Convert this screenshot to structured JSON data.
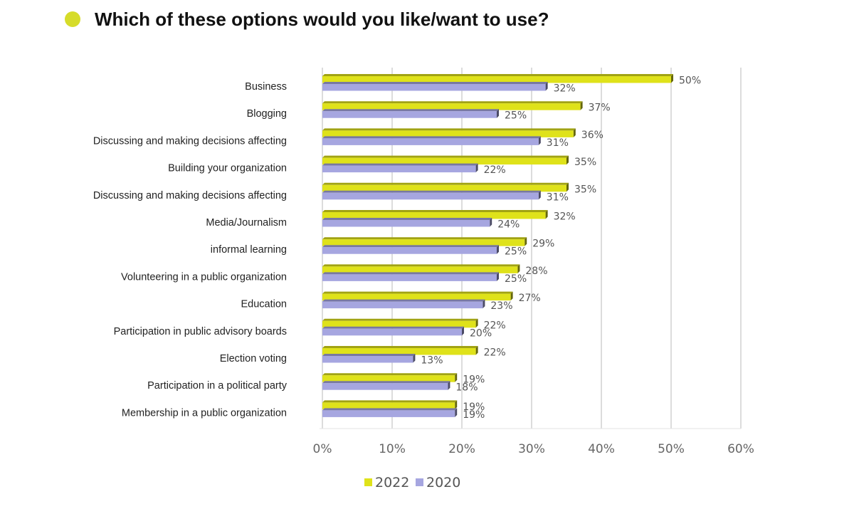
{
  "title": "Which of these options would you like/want to use?",
  "chart_data": {
    "type": "bar",
    "orientation": "horizontal",
    "title": "Which of these options would you like/want to use?",
    "categories": [
      "Business",
      "Blogging",
      "Discussing and making decisions affecting",
      "Building your organization",
      "Discussing and making decisions affecting",
      "Media/Journalism",
      "informal learning",
      "Volunteering in a public organization",
      "Education",
      "Participation in public advisory boards",
      "Election voting",
      "Participation in a political party",
      "Membership in a public organization"
    ],
    "series": [
      {
        "name": "2022",
        "color": "#dfe21a",
        "values": [
          50,
          37,
          36,
          35,
          35,
          32,
          29,
          28,
          27,
          22,
          22,
          19,
          19
        ]
      },
      {
        "name": "2020",
        "color": "#a6a6e0",
        "values": [
          32,
          25,
          31,
          22,
          31,
          24,
          25,
          25,
          23,
          20,
          13,
          18,
          19
        ]
      }
    ],
    "value_suffix": "%",
    "xlim": [
      0,
      60
    ],
    "xticks": [
      0,
      10,
      20,
      30,
      40,
      50,
      60
    ],
    "xtick_labels": [
      "0%",
      "10%",
      "20%",
      "30%",
      "40%",
      "50%",
      "60%"
    ],
    "grid": true,
    "legend": "bottom-center"
  }
}
